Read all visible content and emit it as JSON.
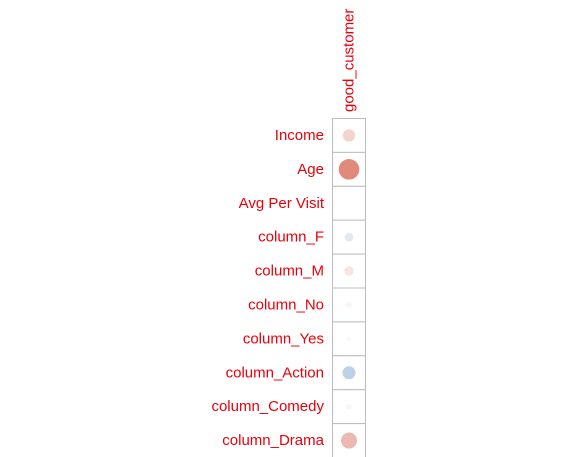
{
  "chart_data": {
    "type": "heatmap",
    "columns": [
      "good_customer"
    ],
    "rows": [
      "Income",
      "Age",
      "Avg Per Visit",
      "column_F",
      "column_M",
      "column_No",
      "column_Yes",
      "column_Action",
      "column_Comedy",
      "column_Drama"
    ],
    "values": [
      [
        0.2
      ],
      [
        0.55
      ],
      [
        0.01
      ],
      [
        -0.1
      ],
      [
        0.12
      ],
      [
        0.05
      ],
      [
        -0.03
      ],
      [
        -0.22
      ],
      [
        -0.04
      ],
      [
        0.33
      ]
    ],
    "color_scale": {
      "negative": "#2166ac",
      "neutral": "#ffffff",
      "positive": "#d6604d"
    },
    "label_color": "#e8000b",
    "grid_color": "#bdbdbd"
  }
}
